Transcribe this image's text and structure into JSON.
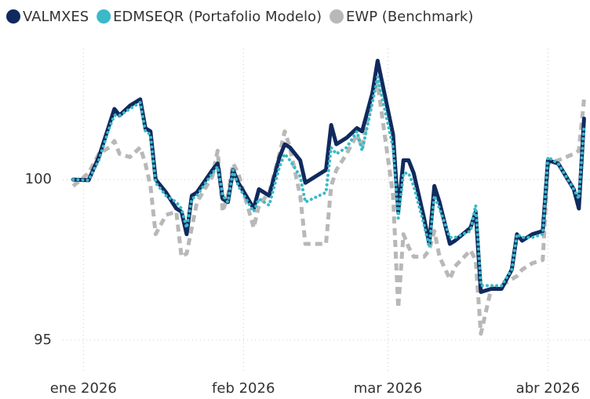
{
  "chart_data": {
    "type": "line",
    "x": [
      -2,
      1,
      3,
      5,
      6,
      7,
      9,
      11,
      12,
      13,
      14,
      16,
      18,
      19,
      20,
      21,
      22,
      25,
      26,
      27,
      28,
      29,
      30,
      33,
      34,
      36,
      38,
      39,
      40,
      42,
      43,
      47,
      48,
      49,
      51,
      53,
      54,
      56,
      57,
      60,
      61,
      62,
      63,
      64,
      66,
      67,
      68,
      69,
      71,
      72,
      75,
      76,
      77,
      79,
      81,
      83,
      84,
      85,
      87,
      89,
      90,
      92,
      95,
      96,
      97
    ],
    "series": [
      {
        "name": "VALMXES",
        "color": "#102a5e",
        "style": "solid",
        "values": [
          100.0,
          99.98,
          100.7,
          101.7,
          102.2,
          102.0,
          102.3,
          102.5,
          101.6,
          101.5,
          100.0,
          99.6,
          99.1,
          99.0,
          98.3,
          99.5,
          99.6,
          100.3,
          100.5,
          99.4,
          99.3,
          100.3,
          99.9,
          99.1,
          99.7,
          99.5,
          100.7,
          101.1,
          101.0,
          100.6,
          99.9,
          100.3,
          101.7,
          101.1,
          101.3,
          101.6,
          101.5,
          102.7,
          103.7,
          101.4,
          99.0,
          100.6,
          100.6,
          100.2,
          98.8,
          98.0,
          99.8,
          99.3,
          98.0,
          98.1,
          98.5,
          99.0,
          96.5,
          96.6,
          96.6,
          97.2,
          98.3,
          98.1,
          98.3,
          98.4,
          100.6,
          100.5,
          99.7,
          99.1,
          101.9
        ]
      },
      {
        "name": "EDMSEQR (Portafolio Modelo)",
        "color": "#3bb9c8",
        "style": "dotted",
        "values": [
          100.0,
          99.98,
          100.6,
          101.6,
          102.0,
          102.0,
          102.2,
          102.4,
          101.5,
          101.4,
          99.9,
          99.5,
          99.3,
          99.1,
          98.5,
          99.4,
          99.5,
          100.2,
          100.4,
          99.5,
          99.3,
          100.3,
          99.8,
          99.0,
          99.4,
          99.2,
          100.4,
          100.8,
          100.6,
          100.1,
          99.3,
          99.6,
          101.0,
          100.8,
          101.0,
          101.5,
          100.9,
          102.4,
          103.2,
          101.0,
          98.8,
          100.2,
          100.2,
          99.8,
          98.6,
          97.9,
          99.5,
          99.1,
          98.2,
          98.2,
          98.4,
          99.2,
          96.7,
          96.7,
          96.7,
          97.2,
          98.3,
          98.2,
          98.2,
          98.3,
          100.7,
          100.5,
          99.7,
          99.4,
          101.7
        ]
      },
      {
        "name": "EWP (Benchmark)",
        "color": "#b8b8b8",
        "style": "dashed",
        "values": [
          99.8,
          100.2,
          100.8,
          101.0,
          101.2,
          100.8,
          100.7,
          101.0,
          100.5,
          99.8,
          98.3,
          98.9,
          99.0,
          97.6,
          97.7,
          98.5,
          99.3,
          100.1,
          100.9,
          99.0,
          99.5,
          100.5,
          100.2,
          98.5,
          99.2,
          99.6,
          100.8,
          101.5,
          101.0,
          99.5,
          98.0,
          98.0,
          99.8,
          100.3,
          100.8,
          101.4,
          101.0,
          102.6,
          103.0,
          99.5,
          96.0,
          98.3,
          97.9,
          97.6,
          97.6,
          97.8,
          98.4,
          97.6,
          96.9,
          97.3,
          97.8,
          97.5,
          95.2,
          96.6,
          96.7,
          96.9,
          97.0,
          97.2,
          97.4,
          97.5,
          100.5,
          100.6,
          100.8,
          100.9,
          102.5
        ]
      }
    ],
    "xlim": [
      -4,
      98
    ],
    "xticks": [
      {
        "value": 0,
        "label": "ene 2026"
      },
      {
        "value": 31,
        "label": "feb 2026"
      },
      {
        "value": 59,
        "label": "mar 2026"
      },
      {
        "value": 90,
        "label": "abr 2026"
      }
    ],
    "ylim": [
      94,
      104.2
    ],
    "yticks": [
      95,
      100
    ],
    "grid": true
  }
}
